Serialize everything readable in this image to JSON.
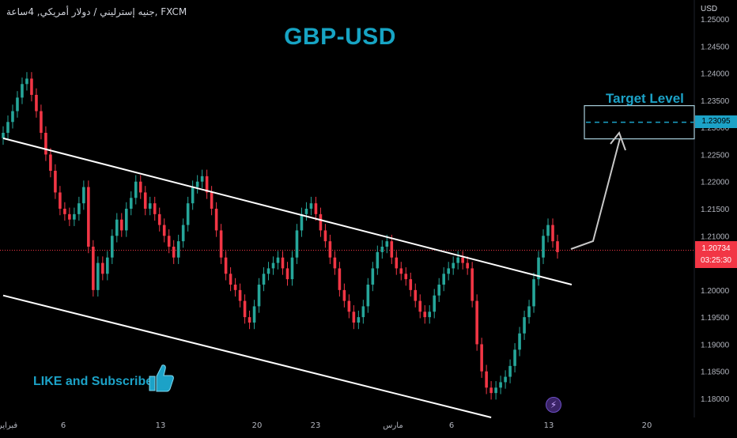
{
  "header": {
    "symbol_text": "جنيه إسترليني / دولار أمريكي, 4ساعة, FXCM"
  },
  "overlay": {
    "title": "GBP-USD",
    "subscribe_text": "LIKE and Subscribe",
    "target_label": "Target Level",
    "target_value": "1.23095",
    "current_price": "1.20734",
    "countdown": "03:25:30",
    "alert_icon": "lightning-icon",
    "thumb_icon": "thumbs-up-icon"
  },
  "colors": {
    "background": "#000000",
    "up": "#26a69a",
    "down": "#f23645",
    "accent": "#1ca2c7",
    "channel": "#ffffff"
  },
  "chart_data": {
    "type": "candlestick",
    "currency": "USD",
    "y_ticks": [
      "1.25000",
      "1.24500",
      "1.24000",
      "1.23500",
      "1.23000",
      "1.22500",
      "1.22000",
      "1.21500",
      "1.21000",
      "1.20500",
      "1.20000",
      "1.19500",
      "1.19000",
      "1.18500",
      "1.18000"
    ],
    "ylim": [
      1.1765,
      1.2535
    ],
    "x_ticks": [
      "فبراير",
      "6",
      "13",
      "20",
      "23",
      "مارس",
      "6",
      "13",
      "20"
    ],
    "target_level": 1.23095,
    "last_price": 1.20734,
    "channel": {
      "upper": [
        [
          0,
          1.228
        ],
        [
          120,
          1.201
        ]
      ],
      "lower": [
        [
          0,
          1.199
        ],
        [
          103,
          1.1765
        ]
      ]
    },
    "candles": [
      1.229,
      1.231,
      1.233,
      1.2355,
      1.238,
      1.239,
      1.236,
      1.233,
      1.229,
      1.225,
      1.222,
      1.218,
      1.215,
      1.214,
      1.213,
      1.214,
      1.216,
      1.219,
      1.208,
      1.2,
      1.205,
      1.203,
      1.206,
      1.21,
      1.213,
      1.211,
      1.215,
      1.217,
      1.22,
      1.218,
      1.215,
      1.216,
      1.214,
      1.212,
      1.21,
      1.208,
      1.206,
      1.209,
      1.212,
      1.216,
      1.219,
      1.22,
      1.221,
      1.218,
      1.215,
      1.211,
      1.206,
      1.203,
      1.201,
      1.2,
      1.198,
      1.195,
      1.194,
      1.197,
      1.201,
      1.203,
      1.204,
      1.205,
      1.206,
      1.204,
      1.202,
      1.206,
      1.211,
      1.214,
      1.215,
      1.216,
      1.214,
      1.211,
      1.209,
      1.206,
      1.204,
      1.2,
      1.198,
      1.196,
      1.194,
      1.195,
      1.197,
      1.201,
      1.204,
      1.207,
      1.208,
      1.209,
      1.206,
      1.204,
      1.203,
      1.202,
      1.2,
      1.198,
      1.196,
      1.195,
      1.196,
      1.199,
      1.201,
      1.203,
      1.204,
      1.205,
      1.206,
      1.205,
      1.204,
      1.198,
      1.19,
      1.185,
      1.182,
      1.181,
      1.182,
      1.183,
      1.184,
      1.186,
      1.189,
      1.192,
      1.195,
      1.197,
      1.202,
      1.206,
      1.21,
      1.212,
      1.209,
      1.207
    ]
  }
}
